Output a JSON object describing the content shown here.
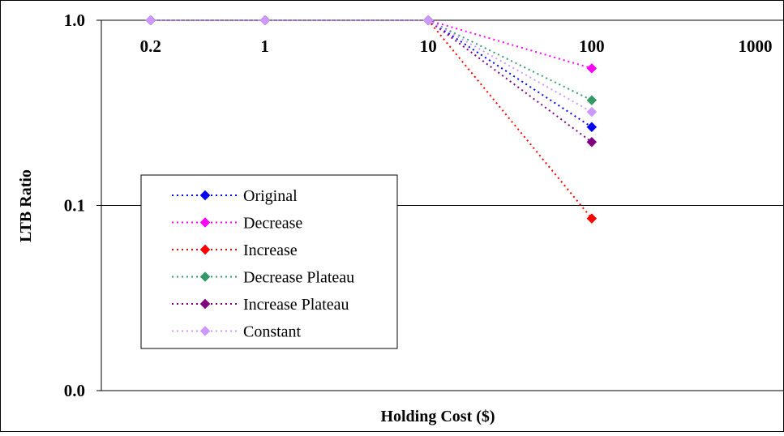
{
  "chart_data": {
    "type": "line",
    "title": "",
    "xlabel": "Holding Cost ($)",
    "ylabel": "LTB Ratio",
    "x_tick_labels": [
      "0.2",
      "1",
      "10",
      "100",
      "1000"
    ],
    "x_scale": "log",
    "xlim": [
      0.1,
      1500
    ],
    "y_scale": "log",
    "y_tick_labels": [
      "1.0",
      "0.1",
      "0.0"
    ],
    "y_ticks": [
      1.0,
      0.1,
      0.01
    ],
    "ylim": [
      0.01,
      1.0
    ],
    "grid": "horizontal",
    "legend_position": "left-center",
    "x": [
      0.2,
      1,
      10,
      100
    ],
    "series": [
      {
        "name": "Original",
        "values": [
          1.0,
          1.0,
          1.0,
          0.265
        ],
        "color": "#0000ff",
        "marker": "diamond",
        "line": "dotted"
      },
      {
        "name": "Decrease",
        "values": [
          1.0,
          1.0,
          1.0,
          0.55
        ],
        "color": "#ff00ff",
        "marker": "diamond",
        "line": "dotted"
      },
      {
        "name": "Increase",
        "values": [
          1.0,
          1.0,
          1.0,
          0.085
        ],
        "color": "#ff0000",
        "marker": "diamond",
        "line": "dotted"
      },
      {
        "name": "Decrease Plateau",
        "values": [
          1.0,
          1.0,
          1.0,
          0.37
        ],
        "color": "#339966",
        "marker": "diamond",
        "line": "dotted"
      },
      {
        "name": "Increase Plateau",
        "values": [
          1.0,
          1.0,
          1.0,
          0.22
        ],
        "color": "#800080",
        "marker": "diamond",
        "line": "dotted"
      },
      {
        "name": "Constant",
        "values": [
          1.0,
          1.0,
          1.0,
          0.32
        ],
        "color": "#cc99ff",
        "marker": "diamond",
        "line": "dotted"
      }
    ]
  }
}
